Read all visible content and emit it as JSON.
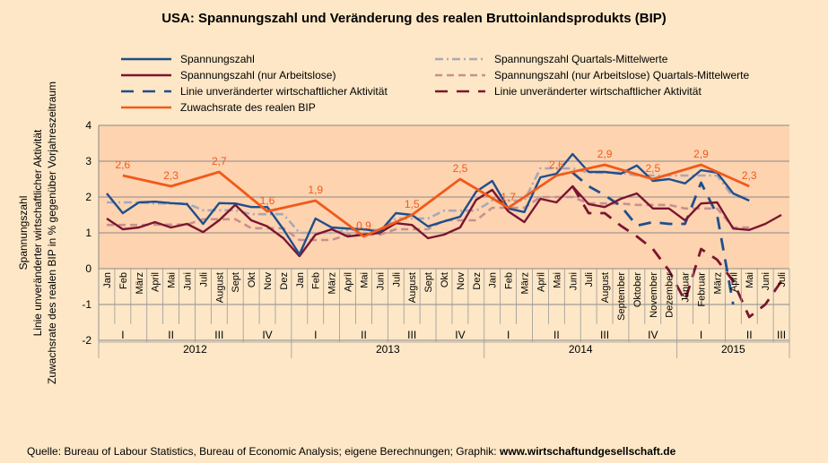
{
  "title": "USA: Spannungszahl und Veränderung des realen Bruttoinlandsprodukts (BIP)",
  "source_prefix": "Quelle: Bureau of Labour Statistics, Bureau of Economic Analysis; eigene Berechnungen; Graphik: ",
  "source_site": "www.wirtschaftundgesellschaft.de",
  "chart_data": {
    "type": "line",
    "ylabel_lines": [
      "Spannungszahl",
      "Linie unveränderter wirtschaftlicher Aktivität",
      "Zuwachsrate des realen BIP in % gegenüber Vorjahreszeitraum"
    ],
    "ylim": [
      -2,
      4
    ],
    "yticks": [
      "4",
      "3",
      "2",
      "1",
      "0",
      "-1",
      "-2"
    ],
    "grid": true,
    "legend_position": "top",
    "months": [
      "Jan",
      "Feb",
      "März",
      "April",
      "Mai",
      "Juni",
      "Juli",
      "August",
      "Sept",
      "Okt",
      "Nov",
      "Dez",
      "Jan",
      "Feb",
      "März",
      "April",
      "Mai",
      "Juni",
      "Juli",
      "August",
      "Sept",
      "Okt",
      "Nov",
      "Dez",
      "Jan",
      "Feb",
      "März",
      "April",
      "Mai",
      "Juni",
      "Juli",
      "August",
      "September",
      "Oktober",
      "November",
      "Dezember",
      "Januar",
      "Februar",
      "März",
      "April",
      "Mai",
      "Juni",
      "Juli"
    ],
    "quarters": [
      "I",
      "II",
      "III",
      "IV",
      "I",
      "II",
      "III",
      "IV",
      "I",
      "II",
      "III",
      "IV",
      "I",
      "II",
      "III"
    ],
    "years": [
      "2012",
      "2013",
      "2014",
      "2015"
    ],
    "series": [
      {
        "name": "Spannungszahl",
        "color": "#1f4e8c",
        "style": "solid",
        "values": [
          2.1,
          1.55,
          1.85,
          1.87,
          1.83,
          1.8,
          1.25,
          1.83,
          1.82,
          1.72,
          1.72,
          1.1,
          0.4,
          1.4,
          1.15,
          1.12,
          1.1,
          1.03,
          1.55,
          1.5,
          1.18,
          1.32,
          1.45,
          2.15,
          2.45,
          1.68,
          1.58,
          2.55,
          2.65,
          3.2,
          2.7,
          2.7,
          2.65,
          2.88,
          2.45,
          2.5,
          2.38,
          2.75,
          2.68,
          2.1,
          1.9,
          null,
          null
        ]
      },
      {
        "name": "Spannungszahl (nur Arbeitslose)",
        "color": "#7b1530",
        "style": "solid",
        "values": [
          1.4,
          1.1,
          1.15,
          1.3,
          1.15,
          1.25,
          1.02,
          1.35,
          1.78,
          1.35,
          1.18,
          0.85,
          0.35,
          0.95,
          1.1,
          0.9,
          0.95,
          1.0,
          1.27,
          1.22,
          0.85,
          0.95,
          1.15,
          1.92,
          2.2,
          1.6,
          1.3,
          1.95,
          1.85,
          2.3,
          1.8,
          1.72,
          1.95,
          2.1,
          1.68,
          1.68,
          1.35,
          1.82,
          1.85,
          1.12,
          1.08,
          1.25,
          1.5
        ]
      },
      {
        "name": "Spannungszahl Quartals-Mittelwerte",
        "color": "#a8a8b8",
        "style": "dotdash",
        "values": [
          1.85,
          1.85,
          1.85,
          1.82,
          1.82,
          1.82,
          1.63,
          1.63,
          1.63,
          1.52,
          1.52,
          1.52,
          1.0,
          1.0,
          1.0,
          1.08,
          1.08,
          1.08,
          1.4,
          1.4,
          1.4,
          1.62,
          1.62,
          1.62,
          1.9,
          1.9,
          1.9,
          2.8,
          2.8,
          2.8,
          2.68,
          2.68,
          2.68,
          2.6,
          2.6,
          2.6,
          2.6,
          2.6,
          2.6,
          2.0,
          2.0,
          null,
          null
        ]
      },
      {
        "name": "Spannungszahl (nur Arbeitslose) Quartals-Mittelwerte",
        "color": "#c8908f",
        "style": "dash",
        "values": [
          1.22,
          1.22,
          1.22,
          1.23,
          1.23,
          1.23,
          1.38,
          1.38,
          1.38,
          1.13,
          1.13,
          1.13,
          0.8,
          0.8,
          0.8,
          0.95,
          0.95,
          0.95,
          1.1,
          1.1,
          1.1,
          1.35,
          1.35,
          1.35,
          1.7,
          1.7,
          1.7,
          2.0,
          2.0,
          2.0,
          1.82,
          1.82,
          1.82,
          1.78,
          1.78,
          1.78,
          1.68,
          1.68,
          1.68,
          1.15,
          1.15,
          null,
          null
        ]
      },
      {
        "name": "Linie unveränderter wirtschaftlicher Aktivität",
        "color": "#1f4e8c",
        "style": "longdash",
        "values": [
          null,
          null,
          null,
          null,
          null,
          null,
          null,
          null,
          null,
          null,
          null,
          null,
          null,
          null,
          null,
          null,
          null,
          null,
          null,
          null,
          null,
          null,
          null,
          null,
          null,
          null,
          null,
          null,
          null,
          2.68,
          2.3,
          2.05,
          1.75,
          1.2,
          1.3,
          1.25,
          1.25,
          2.4,
          1.5,
          -1.0,
          null,
          null,
          null
        ]
      },
      {
        "name": "Linie unveränderter wirtschaftlicher Aktivität",
        "color": "#7b1530",
        "style": "longdash",
        "values": [
          null,
          null,
          null,
          null,
          null,
          null,
          null,
          null,
          null,
          null,
          null,
          null,
          null,
          null,
          null,
          null,
          null,
          null,
          null,
          null,
          null,
          null,
          null,
          null,
          null,
          null,
          null,
          null,
          null,
          2.3,
          1.55,
          1.55,
          1.2,
          0.9,
          0.55,
          -0.05,
          -0.9,
          0.55,
          0.25,
          -0.35,
          -1.35,
          -1.0,
          -0.35
        ]
      },
      {
        "name": "Zuwachsrate des realen BIP",
        "color": "#f05a19",
        "style": "solid",
        "values": [
          null,
          2.6,
          null,
          null,
          2.3,
          null,
          null,
          2.7,
          null,
          null,
          1.6,
          null,
          null,
          1.9,
          null,
          null,
          0.9,
          null,
          null,
          1.5,
          null,
          null,
          2.5,
          null,
          null,
          1.7,
          null,
          null,
          2.6,
          null,
          null,
          2.9,
          null,
          null,
          2.5,
          null,
          null,
          2.9,
          null,
          null,
          2.3,
          null,
          null
        ]
      }
    ],
    "data_labels": [
      {
        "index": 1,
        "text": "2,6"
      },
      {
        "index": 4,
        "text": "2,3"
      },
      {
        "index": 7,
        "text": "2,7"
      },
      {
        "index": 10,
        "text": "1,6"
      },
      {
        "index": 13,
        "text": "1,9"
      },
      {
        "index": 16,
        "text": "0,9"
      },
      {
        "index": 19,
        "text": "1,5"
      },
      {
        "index": 22,
        "text": "2,5"
      },
      {
        "index": 25,
        "text": "1,7"
      },
      {
        "index": 28,
        "text": "2,6"
      },
      {
        "index": 31,
        "text": "2,9"
      },
      {
        "index": 34,
        "text": "2,5"
      },
      {
        "index": 37,
        "text": "2,9"
      },
      {
        "index": 40,
        "text": "2,3"
      }
    ],
    "legend": [
      {
        "label": "Spannungszahl",
        "series": 0
      },
      {
        "label": "Spannungszahl Quartals-Mittelwerte",
        "series": 2
      },
      {
        "label": "Spannungszahl (nur Arbeitslose)",
        "series": 1
      },
      {
        "label": "Spannungszahl (nur Arbeitslose) Quartals-Mittelwerte",
        "series": 3
      },
      {
        "label": "Linie unveränderter wirtschaftlicher Aktivität",
        "series": 4
      },
      {
        "label": "Linie unveränderter wirtschaftlicher Aktivität",
        "series": 5
      },
      {
        "label": "Zuwachsrate des realen BIP",
        "series": 6
      }
    ],
    "colors": {
      "plot_bg": "#fdd3b0",
      "page_bg": "#fde7c6",
      "grid": "#8a8a8a"
    }
  }
}
